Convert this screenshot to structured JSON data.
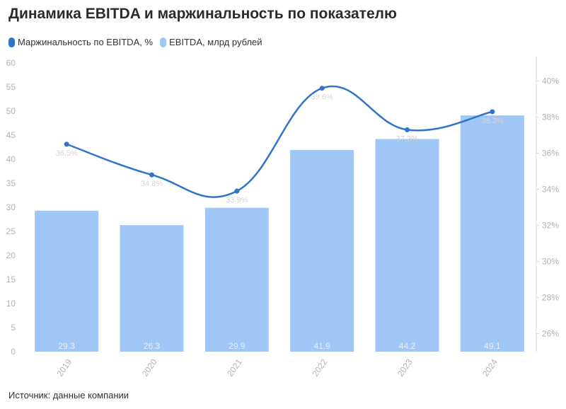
{
  "title": "Динамика EBITDA и маржинальность по показателю",
  "source": "Источник: данные компании",
  "colors": {
    "bar": "#a0c6f5",
    "line": "#2f74c8",
    "axis_text": "#b3b3b3",
    "grid": "#e9e9e9",
    "bar_label": "#e7eef8",
    "line_label": "#d4d4d4"
  },
  "chart_data": {
    "type": "bar",
    "categories": [
      "2019",
      "2020",
      "2021",
      "2022",
      "2023",
      "2024"
    ],
    "series": [
      {
        "name": "EBITDA, млрд рублей",
        "type": "bar",
        "axis": "left",
        "values": [
          29.3,
          26.3,
          29.9,
          41.9,
          44.2,
          49.1
        ],
        "labels": [
          "29.3",
          "26.3",
          "29.9",
          "41.9",
          "44.2",
          "49.1"
        ]
      },
      {
        "name": "Маржинальность по EBITDA, %",
        "type": "line",
        "axis": "right",
        "values": [
          36.5,
          34.8,
          33.9,
          39.6,
          37.3,
          38.3
        ],
        "labels": [
          "36.5%",
          "34.8%",
          "33.9%",
          "39.6%",
          "37.3%",
          "38.3%"
        ]
      }
    ],
    "y_left": {
      "min": 0,
      "max": 60,
      "ticks": [
        0,
        5,
        10,
        15,
        20,
        25,
        30,
        35,
        40,
        45,
        50,
        55,
        60
      ],
      "tick_labels": [
        "0",
        "5",
        "10",
        "15",
        "20",
        "25",
        "30",
        "35",
        "40",
        "45",
        "50",
        "55",
        "60"
      ]
    },
    "y_right": {
      "min": 25.0,
      "max": 41.0,
      "ticks": [
        26,
        28,
        30,
        32,
        34,
        36,
        38,
        40
      ],
      "tick_labels": [
        "26%",
        "28%",
        "30%",
        "32%",
        "34%",
        "36%",
        "38%",
        "40%"
      ]
    },
    "legend": "top-left",
    "grid": false,
    "x_tick_rotation": "diagonal"
  }
}
